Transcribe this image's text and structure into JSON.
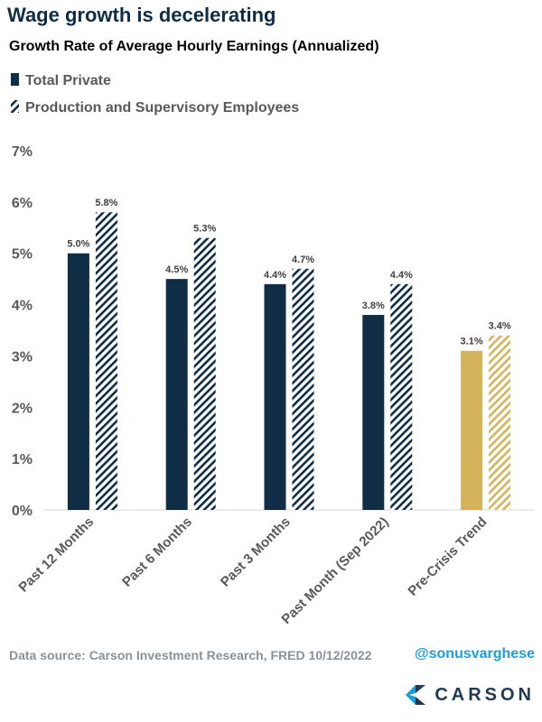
{
  "chart_data": {
    "type": "bar",
    "title": "Wage growth is decelerating",
    "subtitle": "Growth Rate of Average Hourly Earnings (Annualized)",
    "categories": [
      "Past 12 Months",
      "Past 6 Months",
      "Past 3 Months",
      "Past Month (Sep 2022)",
      "Pre-Crisis Trend"
    ],
    "series": [
      {
        "name": "Total Private",
        "values": [
          5.0,
          4.5,
          4.4,
          3.8,
          3.1
        ],
        "labels": [
          "5.0%",
          "4.5%",
          "4.4%",
          "3.8%",
          "3.1%"
        ]
      },
      {
        "name": "Production and Supervisory Employees",
        "values": [
          5.8,
          5.3,
          4.7,
          4.4,
          3.4
        ],
        "labels": [
          "5.8%",
          "5.3%",
          "4.7%",
          "4.4%",
          "3.4%"
        ]
      }
    ],
    "ylim": [
      0,
      7
    ],
    "yticks": [
      "0%",
      "1%",
      "2%",
      "3%",
      "4%",
      "5%",
      "6%",
      "7%"
    ],
    "legend": "top-left",
    "grid": false,
    "colors": {
      "series_main": "#0f2d45",
      "highlight": "#d4b45a",
      "title": "#0f2d45"
    },
    "highlight_category": "Pre-Crisis Trend"
  },
  "footer": {
    "source": "Data source: Carson Investment Research, FRED   10/12/2022",
    "handle": "@sonusvarghese",
    "brand": "CARSON"
  }
}
